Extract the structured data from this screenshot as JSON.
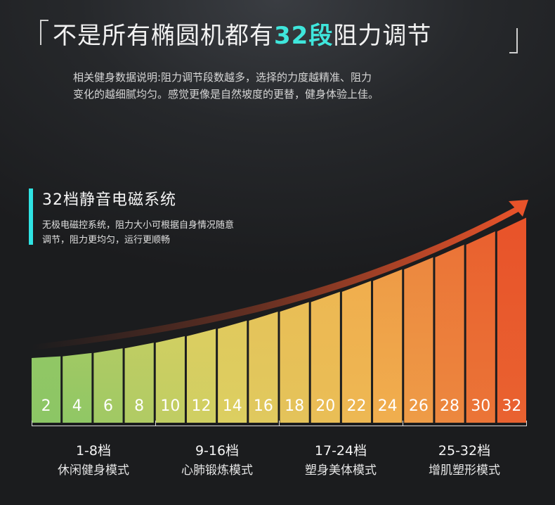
{
  "header": {
    "title_pre": "不是所有椭圆机都有",
    "title_hl": "32段",
    "title_post": "阻力调节",
    "desc_line1": "相关健身数据说明:阻力调节段数越多，选择的力度越精准、阻力",
    "desc_line2": "变化的越细腻均匀。感觉更像是自然坡度的更替，健身体验上佳。"
  },
  "system": {
    "title": "32档静音电磁系统",
    "desc_line1": "无极电磁控系统，阻力大小可根据自身情况随意",
    "desc_line2": "调节，阻力更均匀，运行更顺畅"
  },
  "chart_data": {
    "type": "bar",
    "categories": [
      "2",
      "4",
      "6",
      "8",
      "10",
      "12",
      "14",
      "16",
      "18",
      "20",
      "22",
      "24",
      "26",
      "28",
      "30",
      "32"
    ],
    "values": [
      2,
      4,
      6,
      8,
      10,
      12,
      14,
      16,
      18,
      20,
      22,
      24,
      26,
      28,
      30,
      32
    ],
    "colors_start": "#8cc665",
    "colors_end": "#e8532a",
    "arrow_color": "#e8532a"
  },
  "groups": [
    {
      "range": "1-8档",
      "mode": "休闲健身模式"
    },
    {
      "range": "9-16档",
      "mode": "心肺锻炼模式"
    },
    {
      "range": "17-24档",
      "mode": "塑身美体模式"
    },
    {
      "range": "25-32档",
      "mode": "增肌塑形模式"
    }
  ]
}
